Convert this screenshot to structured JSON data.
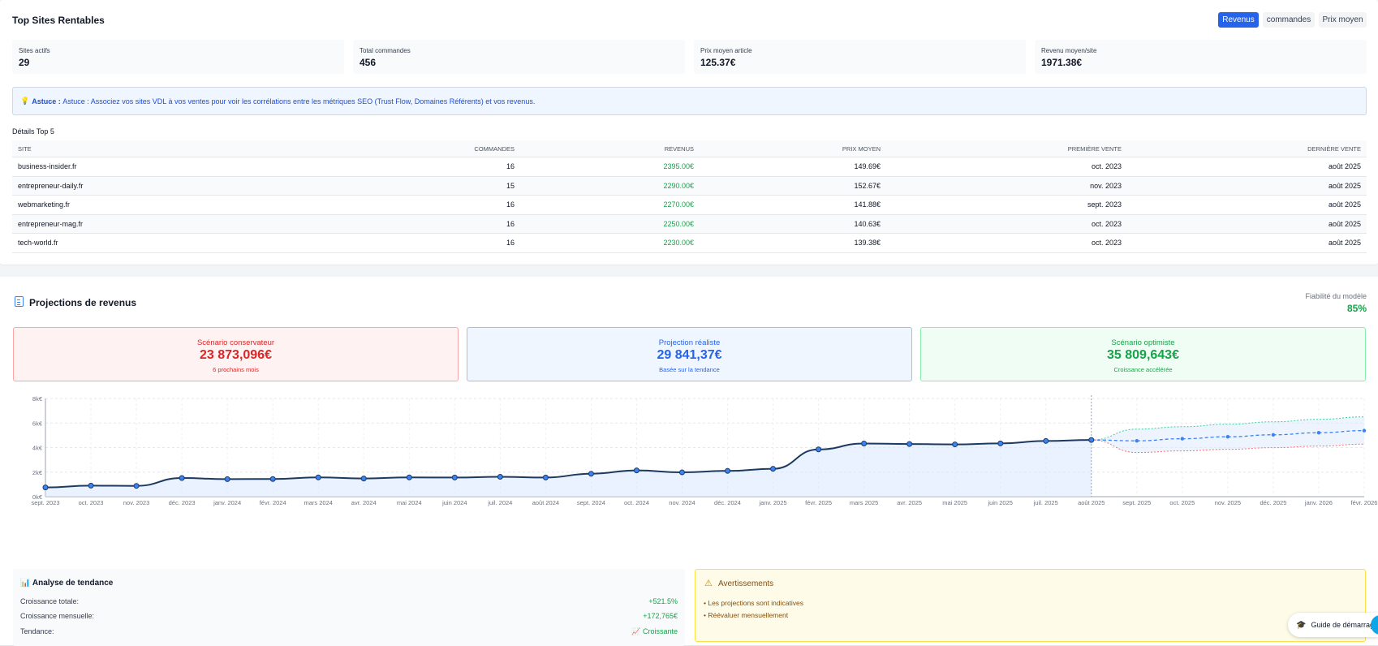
{
  "top": {
    "title": "Top Sites Rentables",
    "buttons": [
      "Revenus",
      "commandes",
      "Prix moyen"
    ],
    "stats": [
      {
        "label": "Sites actifs",
        "value": "29"
      },
      {
        "label": "Total commandes",
        "value": "456"
      },
      {
        "label": "Prix moyen article",
        "value": "125.37€"
      },
      {
        "label": "Revenu moyen/site",
        "value": "1971.38€"
      }
    ],
    "tip_bold": "Astuce :",
    "tip_text": "Astuce : Associez vos sites VDL à vos ventes pour voir les corrélations entre les métriques SEO (Trust Flow, Domaines Référents) et vos revenus.",
    "table_title": "Détails Top 5",
    "columns": [
      "SITE",
      "COMMANDES",
      "REVENUS",
      "PRIX MOYEN",
      "PREMIÈRE VENTE",
      "DERNIÈRE VENTE"
    ],
    "rows": [
      [
        "business-insider.fr",
        "16",
        "2395.00€",
        "149.69€",
        "oct. 2023",
        "août 2025"
      ],
      [
        "entrepreneur-daily.fr",
        "15",
        "2290.00€",
        "152.67€",
        "nov. 2023",
        "août 2025"
      ],
      [
        "webmarketing.fr",
        "16",
        "2270.00€",
        "141.88€",
        "sept. 2023",
        "août 2025"
      ],
      [
        "entrepreneur-mag.fr",
        "16",
        "2250.00€",
        "140.63€",
        "oct. 2023",
        "août 2025"
      ],
      [
        "tech-world.fr",
        "16",
        "2230.00€",
        "139.38€",
        "oct. 2023",
        "août 2025"
      ]
    ]
  },
  "projections": {
    "title": "Projections de revenus",
    "reliability_label": "Fiabilité du modèle",
    "reliability_value": "85%",
    "scenarios": [
      {
        "title": "Scénario conservateur",
        "value": "23 873,096€",
        "sub": "6 prochains mois"
      },
      {
        "title": "Projection réaliste",
        "value": "29 841,37€",
        "sub": "Basée sur la tendance"
      },
      {
        "title": "Scénario optimiste",
        "value": "35 809,643€",
        "sub": "Croissance accélérée"
      }
    ]
  },
  "chart_data": {
    "type": "line",
    "categories": [
      "sept. 2023",
      "oct. 2023",
      "nov. 2023",
      "déc. 2023",
      "janv. 2024",
      "févr. 2024",
      "mars 2024",
      "avr. 2024",
      "mai 2024",
      "juin 2024",
      "juil. 2024",
      "août 2024",
      "sept. 2024",
      "oct. 2024",
      "nov. 2024",
      "déc. 2024",
      "janv. 2025",
      "févr. 2025",
      "mars 2025",
      "avr. 2025",
      "mai 2025",
      "juin 2025",
      "juil. 2025",
      "août 2025",
      "sept. 2025",
      "oct. 2025",
      "nov. 2025",
      "déc. 2025",
      "janv. 2026",
      "févr. 2026"
    ],
    "y_ticks": [
      "0k€",
      "2k€",
      "4k€",
      "6k€",
      "8k€"
    ],
    "ylim": [
      0,
      8000
    ],
    "series": [
      {
        "values": [
          750,
          900,
          880,
          1520,
          1430,
          1440,
          1570,
          1480,
          1570,
          1560,
          1620,
          1560,
          1870,
          2140,
          1980,
          2100,
          2270,
          3850,
          4330,
          4290,
          4260,
          4340,
          4540,
          4620,
          null,
          null,
          null,
          null,
          null,
          null
        ]
      },
      {
        "values": [
          null,
          null,
          null,
          null,
          null,
          null,
          null,
          null,
          null,
          null,
          null,
          null,
          null,
          null,
          null,
          null,
          null,
          null,
          null,
          null,
          null,
          null,
          null,
          4620,
          4550,
          4720,
          4880,
          5040,
          5210,
          5380
        ]
      },
      {
        "values": [
          null,
          null,
          null,
          null,
          null,
          null,
          null,
          null,
          null,
          null,
          null,
          null,
          null,
          null,
          null,
          null,
          null,
          null,
          null,
          null,
          null,
          null,
          null,
          4620,
          5500,
          5700,
          5900,
          6100,
          6300,
          6500
        ]
      },
      {
        "values": [
          null,
          null,
          null,
          null,
          null,
          null,
          null,
          null,
          null,
          null,
          null,
          null,
          null,
          null,
          null,
          null,
          null,
          null,
          null,
          null,
          null,
          null,
          null,
          4620,
          3600,
          3730,
          3860,
          3990,
          4120,
          4280
        ]
      }
    ],
    "colors": {
      "actual": "#1e3a5f",
      "actual_fill": "#dbeafe",
      "projection": "#3b82f6",
      "optimistic": "#34d399",
      "conservative": "#f87171"
    }
  },
  "trend": {
    "title": "Analyse de tendance",
    "icon": "bar-chart-icon",
    "rows": [
      {
        "label": "Croissance totale:",
        "value": "+521.5%"
      },
      {
        "label": "Croissance mensuelle:",
        "value": "+172,765€"
      },
      {
        "label": "Tendance:",
        "value": "📈 Croissante"
      }
    ]
  },
  "warnings": {
    "title": "Avertissements",
    "icon": "warning-icon",
    "items": [
      "• Les projections sont indicatives",
      "• Réévaluer mensuellement"
    ]
  },
  "guide": {
    "label": "Guide de démarrage",
    "icon": "graduation-cap-icon"
  }
}
